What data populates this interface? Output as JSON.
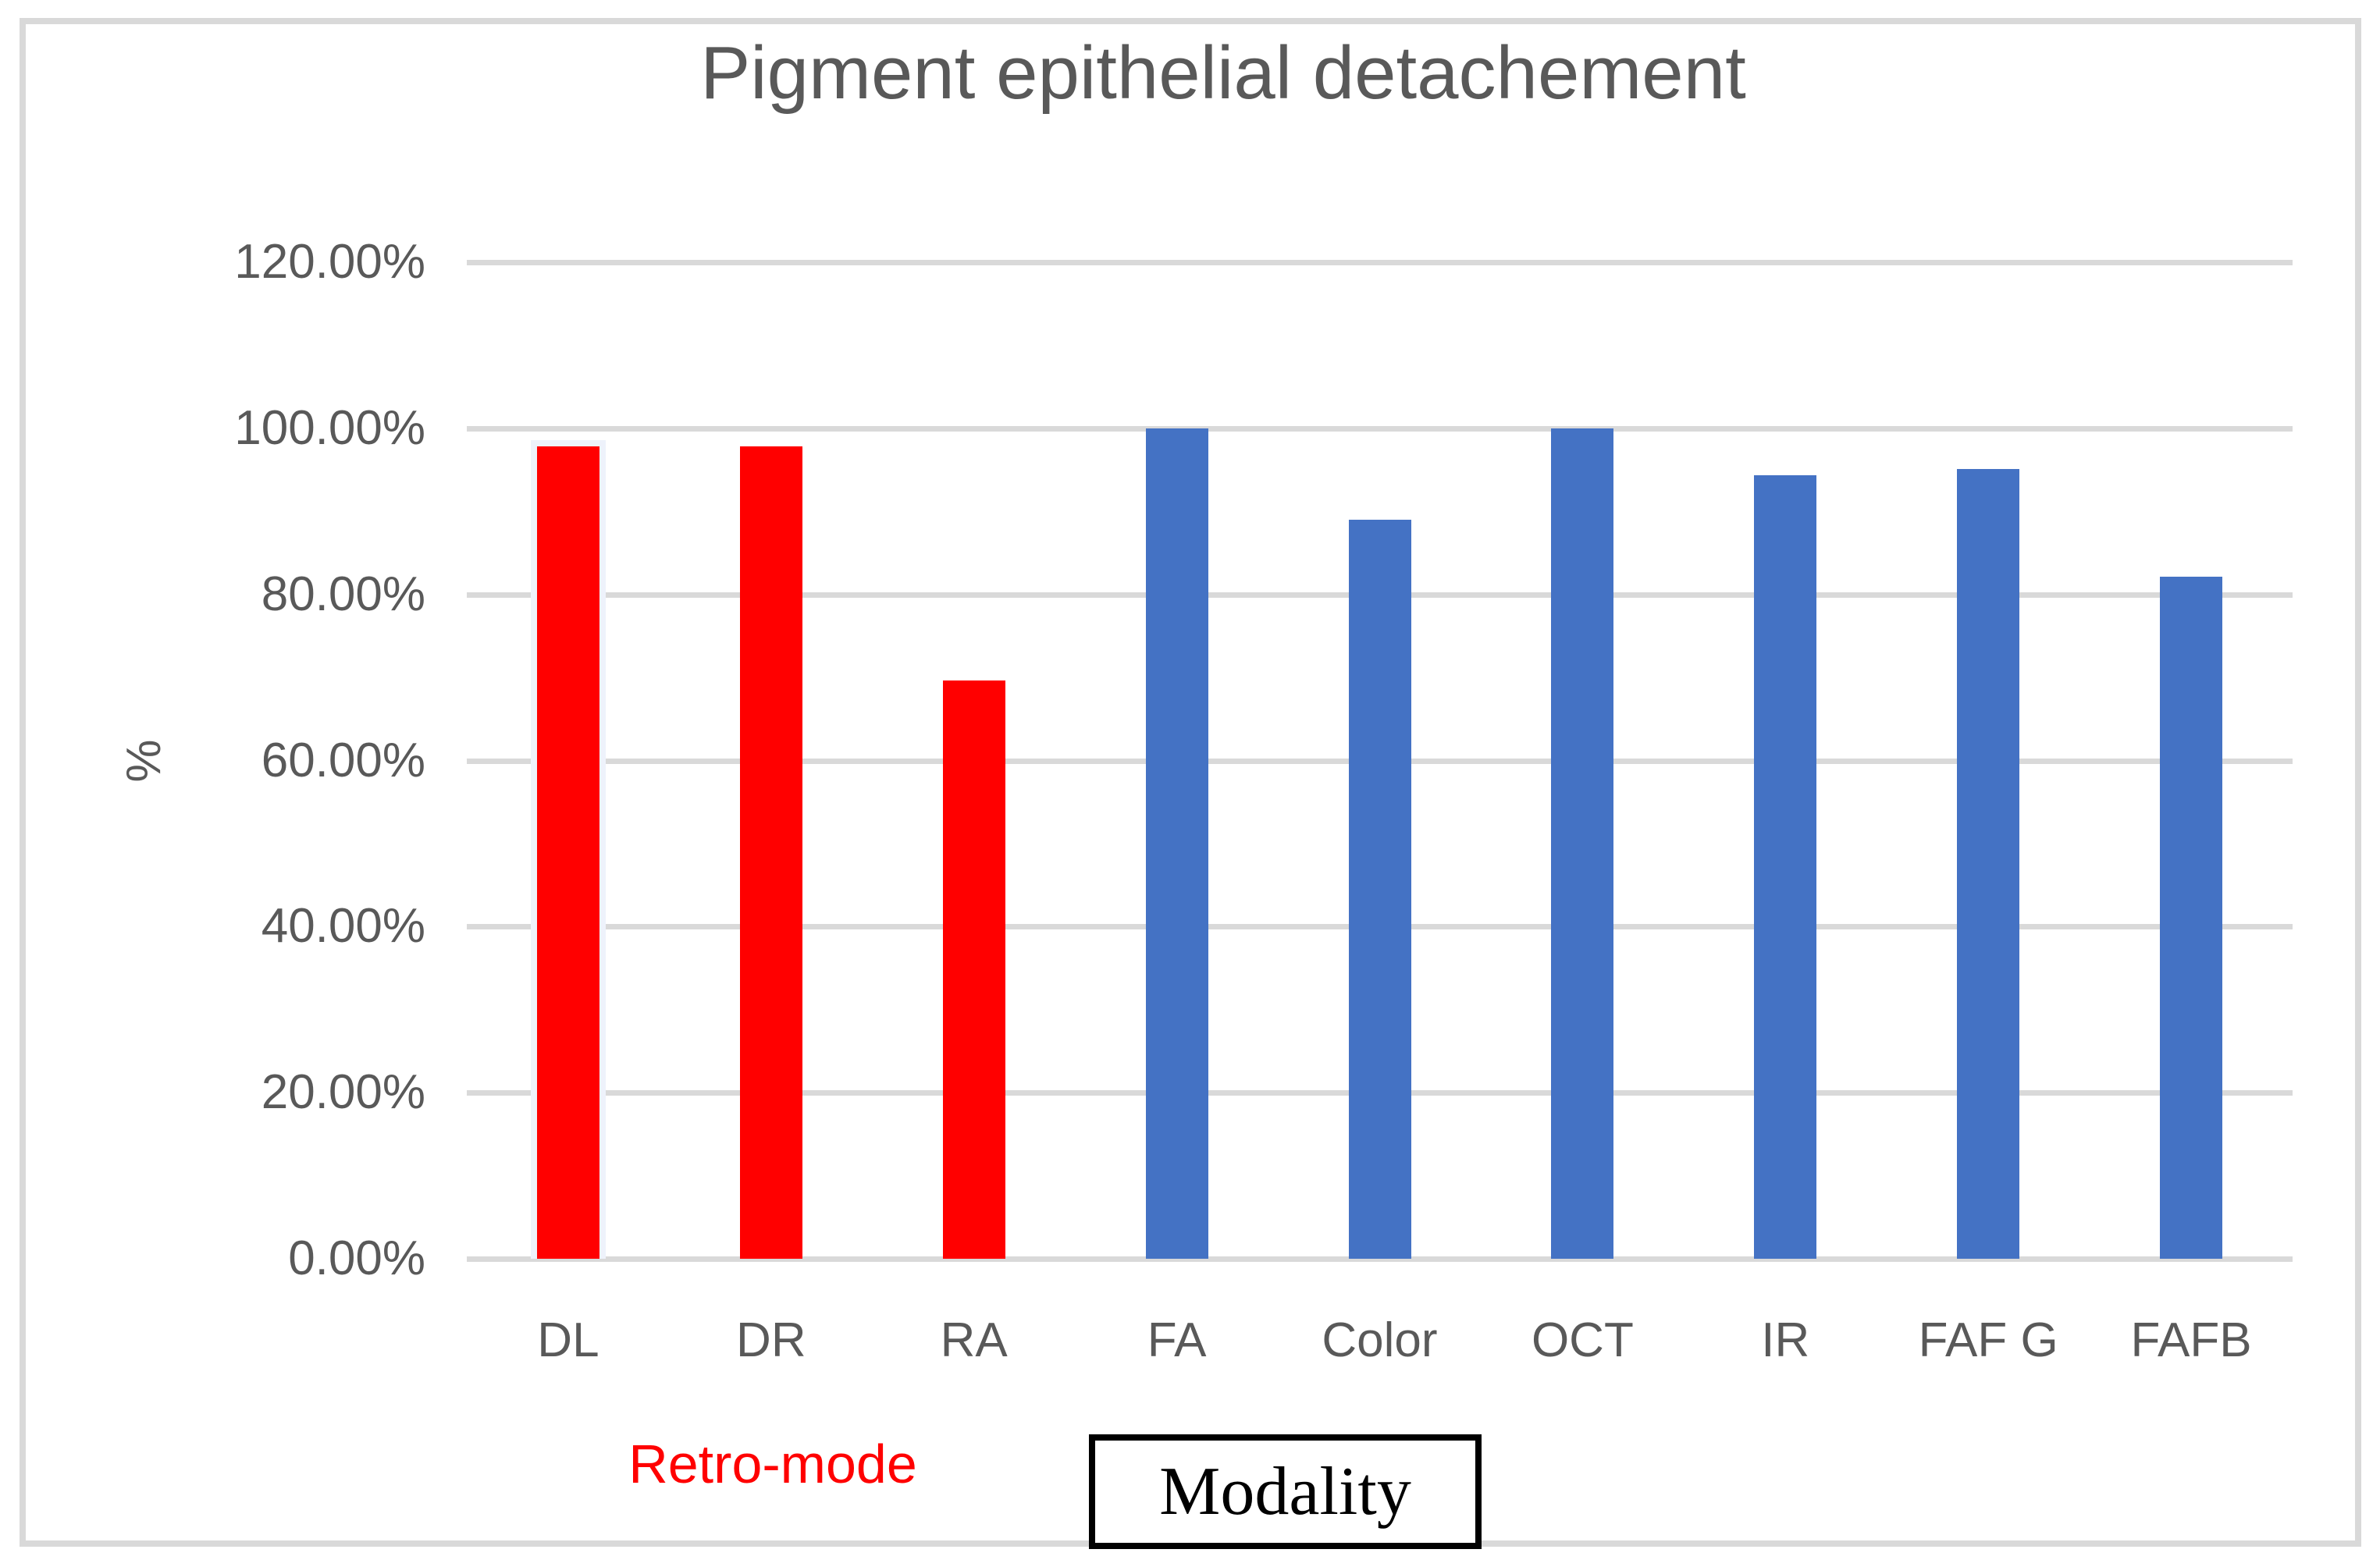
{
  "window": {
    "background": "#ffffff",
    "frame_color": "#d9d9d9"
  },
  "chart_data": {
    "type": "bar",
    "title": "Pigment epithelial detachement",
    "title_color": "#595959",
    "ylabel": "%",
    "xlabel": "Modality",
    "group_label": "Retro-mode",
    "group_label_color": "#ff0000",
    "categories": [
      "DL",
      "DR",
      "RA",
      "FA",
      "Color",
      "OCT",
      "IR",
      "FAF G",
      "FAFB"
    ],
    "values": [
      97.8,
      97.8,
      69.6,
      100,
      89,
      100,
      94.3,
      95.1,
      82.1
    ],
    "bar_color_by_category": [
      "#ff0000",
      "#ff0000",
      "#ff0000",
      "#4472c4",
      "#4472c4",
      "#4472c4",
      "#4472c4",
      "#4472c4",
      "#4472c4"
    ],
    "red_bar_color": "#ff0000",
    "blue_bar_color": "#4472c4",
    "ylim": [
      0,
      120
    ],
    "ytick_step": 20,
    "ytick_labels": [
      "0.00%",
      "20.00%",
      "40.00%",
      "60.00%",
      "80.00%",
      "100.00%",
      "120.00%"
    ],
    "grid": true,
    "gridline_color": "#d9d9d9",
    "axis_text_color": "#595959",
    "legend": "none",
    "selected_category": "DL",
    "selection_highlight_color": "#eef2fb"
  }
}
